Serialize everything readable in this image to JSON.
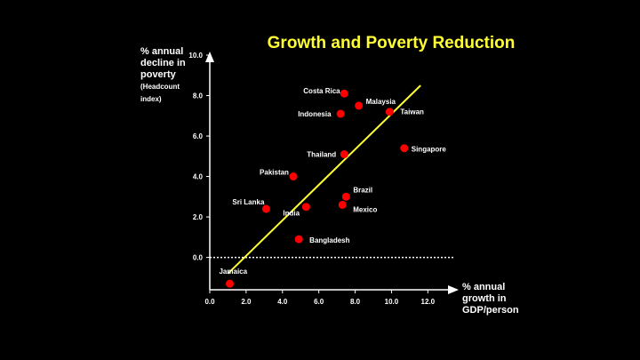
{
  "chart_data": {
    "type": "scatter",
    "title": "Growth and Poverty Reduction",
    "ylabel_lines": [
      "% annual",
      "decline in",
      "poverty"
    ],
    "ylabel_sub_lines": [
      "(Headcount",
      "index)"
    ],
    "xlabel_lines": [
      "% annual",
      "growth in",
      "GDP/person"
    ],
    "xlim": [
      0,
      13.5
    ],
    "ylim": [
      -1.6,
      10.0
    ],
    "x_ticks": [
      0,
      2,
      4,
      6,
      8,
      10,
      12
    ],
    "x_tick_labels": [
      "0.0",
      "2.0",
      "4.0",
      "6.0",
      "8.0",
      "10.0",
      "12.0"
    ],
    "y_ticks": [
      0,
      2,
      4,
      6,
      8,
      10
    ],
    "y_tick_labels": [
      "0.0",
      "2.0",
      "4.0",
      "6.0",
      "8.0",
      "10.0"
    ],
    "reference_line_y": 0,
    "trend_line": {
      "x": [
        1.0,
        11.6
      ],
      "y": [
        -0.8,
        8.5
      ],
      "color": "#ffff33"
    },
    "point_color": "#ff0000",
    "points": [
      {
        "label": "Costa Rica",
        "x": 7.4,
        "y": 8.1
      },
      {
        "label": "Malaysia",
        "x": 8.2,
        "y": 7.5
      },
      {
        "label": "Indonesia",
        "x": 7.2,
        "y": 7.1
      },
      {
        "label": "Taiwan",
        "x": 9.9,
        "y": 7.2
      },
      {
        "label": "Thailand",
        "x": 7.4,
        "y": 5.1
      },
      {
        "label": "Singapore",
        "x": 10.7,
        "y": 5.4
      },
      {
        "label": "Pakistan",
        "x": 4.6,
        "y": 4.0
      },
      {
        "label": "Brazil",
        "x": 7.5,
        "y": 3.0
      },
      {
        "label": "Sri Lanka",
        "x": 3.1,
        "y": 2.4
      },
      {
        "label": "India",
        "x": 5.3,
        "y": 2.5
      },
      {
        "label": "Mexico",
        "x": 7.3,
        "y": 2.6
      },
      {
        "label": "Bangladesh",
        "x": 4.9,
        "y": 0.9
      },
      {
        "label": "Jamaica",
        "x": 1.1,
        "y": -1.3
      }
    ]
  }
}
